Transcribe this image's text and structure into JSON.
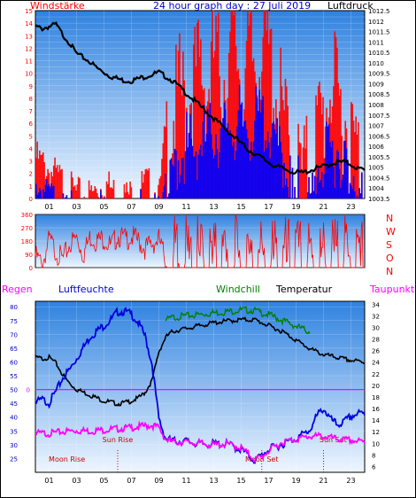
{
  "header": {
    "title": "24 hour graph day : 27 Juli 2019",
    "left_label": "Windstärke",
    "right_label": "Luftdruck"
  },
  "colors": {
    "wind_gust": "#ff0000",
    "wind_avg": "#0000ff",
    "pressure": "#000000",
    "direction": "#ff0000",
    "humidity": "#0000dd",
    "temperature": "#000000",
    "windchill": "#008000",
    "dewpoint": "#ff00ff",
    "rain": "#ff00ff",
    "axis_red": "#ff0000",
    "axis_blue": "#0000cc",
    "bg_top": "#2f82e0",
    "bg_bottom": "#eef6ff"
  },
  "chart_data": [
    {
      "type": "line",
      "name": "wind-pressure",
      "title": "24 hour graph day : 27 Juli 2019",
      "ylabel_left": "Windstärke",
      "ylabel_right": "Luftdruck",
      "x_ticks": [
        "01",
        "03",
        "05",
        "07",
        "09",
        "11",
        "13",
        "15",
        "17",
        "19",
        "21",
        "23"
      ],
      "x_range_hours": [
        0,
        24
      ],
      "y_left_ticks": [
        "0",
        "0.5",
        "1",
        "1.5",
        "2",
        "2.5",
        "3",
        "3.5",
        "4",
        "4.5",
        "5",
        "5.5",
        "6",
        "6.5",
        "7",
        "7.5",
        "8",
        "8.5",
        "9",
        "9.5",
        "10",
        "10.5",
        "11",
        "11.5",
        "12",
        "12.5",
        "13",
        "13.5",
        "14",
        "14.5",
        "15"
      ],
      "y_left_range": [
        0,
        15
      ],
      "y_right_ticks": [
        "1003.5",
        "1004",
        "1004.5",
        "1005",
        "1005.5",
        "1006",
        "1006.5",
        "1007",
        "1007.5",
        "1008",
        "1008.5",
        "1009",
        "1009.5",
        "1010",
        "1010.5",
        "1011",
        "1011.5",
        "1012",
        "1012.5"
      ],
      "y_right_range": [
        1003.5,
        1012.5
      ],
      "series": [
        {
          "name": "Luftdruck",
          "x": [
            0,
            0.5,
            1,
            1.5,
            2,
            2.5,
            3,
            3.5,
            4,
            4.5,
            5,
            5.5,
            6,
            6.5,
            7,
            7.5,
            8,
            8.5,
            9,
            9.5,
            10,
            10.5,
            11,
            11.5,
            12,
            12.5,
            13,
            13.5,
            14,
            14.5,
            15,
            15.5,
            16,
            16.5,
            17,
            17.5,
            18,
            18.5,
            19,
            19.5,
            20,
            20.5,
            21,
            21.5,
            22,
            22.5,
            23,
            23.5,
            24
          ],
          "values": [
            1011.8,
            1011.7,
            1011.8,
            1011.9,
            1011.4,
            1011.0,
            1010.5,
            1010.3,
            1010.1,
            1009.8,
            1009.6,
            1009.4,
            1009.3,
            1009.2,
            1009.2,
            1009.3,
            1009.4,
            1009.5,
            1009.6,
            1009.4,
            1009.2,
            1008.9,
            1008.6,
            1008.3,
            1008.0,
            1007.7,
            1007.4,
            1007.1,
            1006.8,
            1006.5,
            1006.2,
            1005.9,
            1005.7,
            1005.5,
            1005.3,
            1005.1,
            1005.0,
            1004.9,
            1004.8,
            1004.8,
            1004.9,
            1005.0,
            1005.1,
            1005.2,
            1005.3,
            1005.3,
            1005.2,
            1005.0,
            1004.9
          ]
        },
        {
          "name": "Wind gust",
          "x": [
            0,
            1,
            2,
            3,
            4,
            5,
            6,
            7,
            8,
            9,
            9.5,
            10,
            10.5,
            11,
            11.5,
            12,
            12.5,
            13,
            13.5,
            14,
            14.5,
            15,
            15.5,
            16,
            16.5,
            17,
            17.5,
            18,
            18.5,
            19,
            19.5,
            20,
            20.5,
            21,
            21.5,
            22,
            22.5,
            23,
            23.5,
            24
          ],
          "values": [
            4,
            3,
            2,
            1,
            1,
            2,
            1,
            1,
            2,
            1,
            7,
            9,
            11,
            10,
            12,
            13,
            11,
            14,
            12,
            13,
            15,
            12,
            14,
            13,
            15,
            14,
            11,
            9,
            6,
            5,
            4,
            6,
            8,
            9,
            12,
            10,
            9,
            7,
            6,
            5
          ]
        },
        {
          "name": "Wind average",
          "x": [
            0,
            1,
            2,
            3,
            4,
            5,
            6,
            7,
            8,
            9,
            9.5,
            10,
            10.5,
            11,
            11.5,
            12,
            12.5,
            13,
            13.5,
            14,
            14.5,
            15,
            15.5,
            16,
            16.5,
            17,
            17.5,
            18,
            18.5,
            19,
            19.5,
            20,
            20.5,
            21,
            21.5,
            22,
            22.5,
            23,
            23.5,
            24
          ],
          "values": [
            1.5,
            1,
            0.5,
            0,
            0,
            0.5,
            0,
            0,
            0.5,
            0,
            3,
            4,
            5,
            6,
            5.5,
            6,
            6.5,
            7,
            6.5,
            7.5,
            7,
            8,
            7,
            7.5,
            8,
            7,
            6,
            5,
            3.5,
            2.5,
            2,
            3,
            4,
            4.5,
            5,
            5.5,
            5,
            4,
            3.5,
            3
          ]
        }
      ]
    },
    {
      "type": "line",
      "name": "wind-direction",
      "x_range_hours": [
        0,
        24
      ],
      "y_left_ticks": [
        "0",
        "90",
        "180",
        "270",
        "360"
      ],
      "y_left_range": [
        0,
        360
      ],
      "right_labels": [
        "N",
        "W",
        "S",
        "O",
        "N"
      ],
      "series": [
        {
          "name": "Windrichtung",
          "x": [
            0,
            0.5,
            1,
            1.5,
            2,
            2.5,
            3,
            3.5,
            4,
            4.5,
            5,
            5.5,
            6,
            6.5,
            7,
            7.5,
            8,
            8.5,
            9,
            9.5,
            10,
            10.5,
            11,
            11.5,
            12,
            12.5,
            13,
            13.5,
            14,
            14.5,
            15,
            15.5,
            16,
            16.5,
            17,
            17.5,
            18,
            18.5,
            19,
            19.5,
            20,
            20.5,
            21,
            21.5,
            22,
            22.5,
            23,
            23.5,
            24
          ],
          "values": [
            120,
            60,
            230,
            150,
            90,
            200,
            240,
            130,
            250,
            220,
            240,
            180,
            260,
            230,
            250,
            220,
            170,
            200,
            230,
            90,
            320,
            30,
            280,
            60,
            340,
            90,
            300,
            40,
            320,
            80,
            350,
            60,
            300,
            30,
            340,
            100,
            320,
            50,
            260,
            80,
            300,
            40,
            340,
            30,
            300,
            60,
            320,
            40,
            280
          ]
        }
      ]
    },
    {
      "type": "line",
      "name": "temp-humidity",
      "legend": [
        "Regen",
        "Luftfeuchte",
        "Windchill",
        "Temperatur",
        "Taupunkt"
      ],
      "x_ticks": [
        "01",
        "03",
        "05",
        "07",
        "09",
        "11",
        "13",
        "15",
        "17",
        "19",
        "21",
        "23"
      ],
      "x_range_hours": [
        0,
        24
      ],
      "y_left_ticks": [
        "25",
        "30",
        "35",
        "40",
        "45",
        "50",
        "55",
        "60",
        "65",
        "70",
        "75",
        "80"
      ],
      "y_left_range": [
        20,
        82
      ],
      "y_right_ticks": [
        "6",
        "8",
        "10",
        "12",
        "14",
        "16",
        "18",
        "20",
        "22",
        "24",
        "26",
        "28",
        "30",
        "32",
        "34"
      ],
      "y_right_range": [
        5,
        34.5
      ],
      "rain_axis_label": "0",
      "annotations": [
        "Moon Rise",
        "Sun Rise",
        "Moon Set",
        "Sun Set"
      ],
      "series": [
        {
          "name": "Luftfeuchte",
          "x": [
            0,
            0.5,
            1,
            1.5,
            2,
            2.5,
            3,
            3.5,
            4,
            4.5,
            5,
            5.5,
            6,
            6.5,
            7,
            7.5,
            8,
            8.5,
            9,
            9.5,
            10,
            11,
            12,
            13,
            14,
            15,
            15.5,
            16,
            16.5,
            17,
            17.5,
            18,
            19,
            20,
            20.5,
            21,
            21.5,
            22,
            22.5,
            23,
            23.5,
            24
          ],
          "values": [
            46,
            47,
            46,
            50,
            55,
            58,
            62,
            66,
            70,
            72,
            74,
            76,
            79,
            79,
            78,
            75,
            70,
            60,
            40,
            33,
            32,
            32,
            31,
            31,
            31,
            29,
            27,
            25,
            27,
            29,
            30,
            31,
            33,
            36,
            41,
            44,
            40,
            38,
            39,
            41,
            42,
            42
          ]
        },
        {
          "name": "Temperatur",
          "x": [
            0,
            0.5,
            1,
            1.5,
            2,
            2.5,
            3,
            3.5,
            4,
            4.5,
            5,
            5.5,
            6,
            6.5,
            7,
            7.5,
            8,
            8.5,
            9,
            9.5,
            10,
            11,
            12,
            13,
            14,
            15,
            16,
            16.5,
            17,
            18,
            19,
            20,
            21,
            22,
            23,
            24
          ],
          "values": [
            25,
            24.8,
            25,
            24,
            22,
            20.5,
            19.5,
            19,
            18.5,
            18,
            17.5,
            17.3,
            17,
            17.2,
            17.5,
            18,
            19,
            21,
            26,
            28.5,
            29.5,
            30,
            30.5,
            31,
            31.3,
            31.5,
            31.5,
            31,
            30.5,
            29.5,
            28,
            26.5,
            25.5,
            25,
            24.5,
            24.2
          ]
        },
        {
          "name": "Windchill",
          "x": [
            9.5,
            10,
            11,
            12,
            13,
            14,
            15,
            16,
            16.5,
            17,
            18,
            19,
            20
          ],
          "values": [
            31.5,
            32,
            32.3,
            32.5,
            32.8,
            33,
            33.3,
            33.2,
            32.8,
            32.5,
            31.5,
            30.5,
            29.5
          ]
        },
        {
          "name": "Taupunkt",
          "x": [
            0,
            1,
            2,
            3,
            4,
            5,
            6,
            7,
            8,
            8.5,
            9,
            9.5,
            10,
            11,
            12,
            13,
            14,
            15,
            15.5,
            16,
            16.5,
            17,
            18,
            19,
            20,
            21,
            22,
            23,
            24
          ],
          "values": [
            12,
            12,
            12.3,
            12.5,
            12.4,
            12.6,
            12.8,
            13,
            13.3,
            13.4,
            13,
            11,
            10.5,
            10.5,
            10.3,
            10,
            10.2,
            9.5,
            8.5,
            7.5,
            8,
            9,
            10.5,
            11,
            11.5,
            11.5,
            11,
            10.8,
            10.5
          ]
        }
      ]
    }
  ]
}
